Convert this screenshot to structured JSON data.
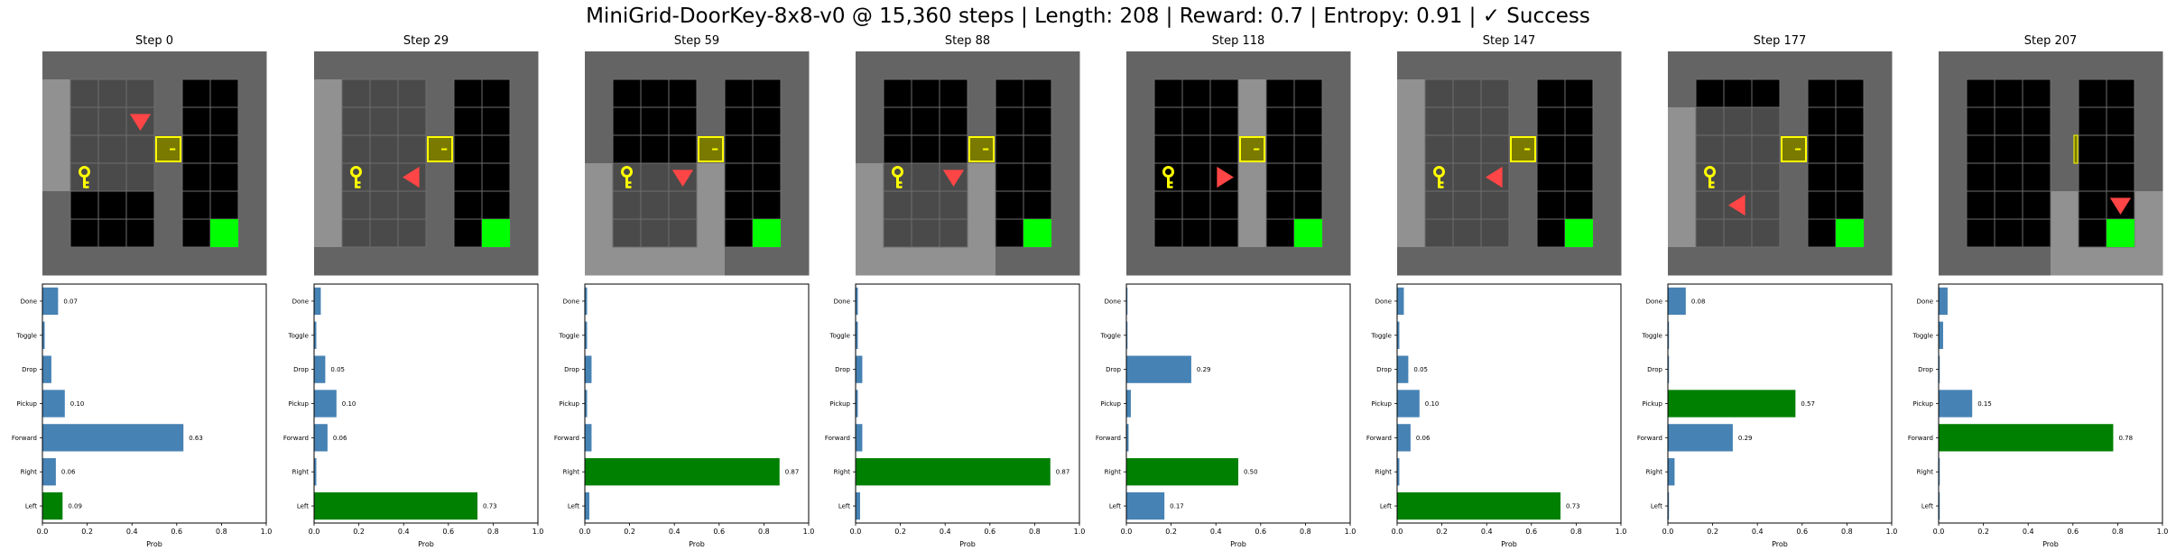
{
  "suptitle": "MiniGrid-DoorKey-8x8-v0 @ 15,360 steps | Length: 208 | Reward: 0.7 | Entropy: 0.91 | ✓ Success",
  "colors": {
    "wall": "#646464",
    "wall_dark": "#5a5a5a",
    "visible_floor": "#919191",
    "hidden_floor": "#4a4a4a",
    "room_floor": "#000000",
    "grid_line": "#6e6e6e",
    "door": "#7a7a00",
    "door_border": "#ffff00",
    "key": "#ffff00",
    "goal": "#00ff00",
    "agent": "#ff4545",
    "bar_default": "#4682b4",
    "bar_selected": "#008000"
  },
  "chart_data": [
    {
      "type": "bar",
      "orientation": "horizontal",
      "title": "Step 0",
      "categories": [
        "Left",
        "Right",
        "Forward",
        "Pickup",
        "Drop",
        "Toggle",
        "Done"
      ],
      "values": [
        0.09,
        0.06,
        0.63,
        0.1,
        0.04,
        0.01,
        0.07
      ],
      "value_labels": [
        "0.09",
        "0.06",
        "0.63",
        "0.10",
        "",
        "",
        "0.07"
      ],
      "selected": "Left",
      "xlabel": "Prob",
      "xlim": [
        0,
        1
      ],
      "xticks": [
        "0.0",
        "0.2",
        "0.4",
        "0.6",
        "0.8",
        "1.0"
      ],
      "frame": {
        "view_rows": [
          1,
          4
        ],
        "view_cols": [
          0,
          2
        ],
        "hidden": [
          [
            1,
            1
          ],
          [
            1,
            2
          ],
          [
            1,
            3
          ],
          [
            2,
            1
          ],
          [
            2,
            2
          ],
          [
            2,
            3
          ],
          [
            3,
            1
          ],
          [
            3,
            2
          ],
          [
            3,
            3
          ],
          [
            4,
            1
          ],
          [
            4,
            2
          ],
          [
            4,
            3
          ]
        ],
        "door_row": 3,
        "door_open": false,
        "key": [
          4,
          1
        ],
        "agent": [
          2,
          3
        ],
        "agent_dir": "down"
      }
    },
    {
      "type": "bar",
      "orientation": "horizontal",
      "title": "Step 29",
      "categories": [
        "Left",
        "Right",
        "Forward",
        "Pickup",
        "Drop",
        "Toggle",
        "Done"
      ],
      "values": [
        0.73,
        0.01,
        0.06,
        0.1,
        0.05,
        0.01,
        0.03
      ],
      "value_labels": [
        "0.73",
        "",
        "0.06",
        "0.10",
        "0.05",
        "",
        ""
      ],
      "selected": "Left",
      "xlabel": "Prob",
      "xlim": [
        0,
        1
      ],
      "xticks": [
        "0.0",
        "0.2",
        "0.4",
        "0.6",
        "0.8",
        "1.0"
      ],
      "frame": {
        "view_rows": [
          1,
          6
        ],
        "view_cols": [
          0,
          3
        ],
        "hidden": [
          [
            1,
            1
          ],
          [
            1,
            2
          ],
          [
            1,
            3
          ],
          [
            2,
            1
          ],
          [
            2,
            2
          ],
          [
            2,
            3
          ],
          [
            3,
            1
          ],
          [
            3,
            2
          ],
          [
            3,
            3
          ],
          [
            4,
            1
          ],
          [
            4,
            2
          ],
          [
            4,
            3
          ],
          [
            5,
            1
          ],
          [
            5,
            2
          ],
          [
            5,
            3
          ],
          [
            6,
            1
          ],
          [
            6,
            2
          ],
          [
            6,
            3
          ]
        ],
        "door_row": 3,
        "door_open": false,
        "key": [
          4,
          1
        ],
        "agent": [
          4,
          3
        ],
        "agent_dir": "left"
      }
    },
    {
      "type": "bar",
      "orientation": "horizontal",
      "title": "Step 59",
      "categories": [
        "Left",
        "Right",
        "Forward",
        "Pickup",
        "Drop",
        "Toggle",
        "Done"
      ],
      "values": [
        0.02,
        0.87,
        0.03,
        0.01,
        0.03,
        0.01,
        0.01
      ],
      "value_labels": [
        "",
        "0.87",
        "",
        "",
        "",
        "",
        ""
      ],
      "selected": "Right",
      "xlabel": "Prob",
      "xlim": [
        0,
        1
      ],
      "xticks": [
        "0.0",
        "0.2",
        "0.4",
        "0.6",
        "0.8",
        "1.0"
      ],
      "frame": {
        "view_rows": [
          4,
          7
        ],
        "view_cols": [
          0,
          4
        ],
        "hidden": [
          [
            4,
            1
          ],
          [
            4,
            2
          ],
          [
            4,
            3
          ],
          [
            5,
            1
          ],
          [
            5,
            2
          ],
          [
            5,
            3
          ],
          [
            6,
            1
          ],
          [
            6,
            2
          ],
          [
            6,
            3
          ]
        ],
        "door_row": 3,
        "door_open": false,
        "key": [
          4,
          1
        ],
        "agent": [
          4,
          3
        ],
        "agent_dir": "down"
      }
    },
    {
      "type": "bar",
      "orientation": "horizontal",
      "title": "Step 88",
      "categories": [
        "Left",
        "Right",
        "Forward",
        "Pickup",
        "Drop",
        "Toggle",
        "Done"
      ],
      "values": [
        0.02,
        0.87,
        0.03,
        0.01,
        0.03,
        0.01,
        0.01
      ],
      "value_labels": [
        "",
        "0.87",
        "",
        "",
        "",
        "",
        ""
      ],
      "selected": "Right",
      "xlabel": "Prob",
      "xlim": [
        0,
        1
      ],
      "xticks": [
        "0.0",
        "0.2",
        "0.4",
        "0.6",
        "0.8",
        "1.0"
      ],
      "frame": {
        "view_rows": [
          4,
          7
        ],
        "view_cols": [
          0,
          4
        ],
        "hidden": [
          [
            4,
            1
          ],
          [
            4,
            2
          ],
          [
            4,
            3
          ],
          [
            5,
            1
          ],
          [
            5,
            2
          ],
          [
            5,
            3
          ],
          [
            6,
            1
          ],
          [
            6,
            2
          ],
          [
            6,
            3
          ]
        ],
        "door_row": 3,
        "door_open": false,
        "key": [
          4,
          1
        ],
        "agent": [
          4,
          3
        ],
        "agent_dir": "down"
      }
    },
    {
      "type": "bar",
      "orientation": "horizontal",
      "title": "Step 118",
      "categories": [
        "Left",
        "Right",
        "Forward",
        "Pickup",
        "Drop",
        "Toggle",
        "Done"
      ],
      "values": [
        0.17,
        0.5,
        0.01,
        0.02,
        0.29,
        0.005,
        0.005
      ],
      "value_labels": [
        "0.17",
        "0.50",
        "",
        "",
        "0.29",
        "",
        ""
      ],
      "selected": "Right",
      "xlabel": "Prob",
      "xlim": [
        0,
        1
      ],
      "xticks": [
        "0.0",
        "0.2",
        "0.4",
        "0.6",
        "0.8",
        "1.0"
      ],
      "frame": {
        "view_rows": [
          1,
          6
        ],
        "view_cols": [
          4,
          4
        ],
        "hidden": [],
        "door_row": 3,
        "door_open": false,
        "key": [
          4,
          1
        ],
        "agent": [
          4,
          3
        ],
        "agent_dir": "right"
      }
    },
    {
      "type": "bar",
      "orientation": "horizontal",
      "title": "Step 147",
      "categories": [
        "Left",
        "Right",
        "Forward",
        "Pickup",
        "Drop",
        "Toggle",
        "Done"
      ],
      "values": [
        0.73,
        0.01,
        0.06,
        0.1,
        0.05,
        0.01,
        0.03
      ],
      "value_labels": [
        "0.73",
        "",
        "0.06",
        "0.10",
        "0.05",
        "",
        ""
      ],
      "selected": "Left",
      "xlabel": "Prob",
      "xlim": [
        0,
        1
      ],
      "xticks": [
        "0.0",
        "0.2",
        "0.4",
        "0.6",
        "0.8",
        "1.0"
      ],
      "frame": {
        "view_rows": [
          1,
          6
        ],
        "view_cols": [
          0,
          3
        ],
        "hidden": [
          [
            1,
            1
          ],
          [
            1,
            2
          ],
          [
            1,
            3
          ],
          [
            2,
            1
          ],
          [
            2,
            2
          ],
          [
            2,
            3
          ],
          [
            3,
            1
          ],
          [
            3,
            2
          ],
          [
            3,
            3
          ],
          [
            4,
            1
          ],
          [
            4,
            2
          ],
          [
            4,
            3
          ],
          [
            5,
            1
          ],
          [
            5,
            2
          ],
          [
            5,
            3
          ],
          [
            6,
            1
          ],
          [
            6,
            2
          ],
          [
            6,
            3
          ]
        ],
        "door_row": 3,
        "door_open": false,
        "key": [
          4,
          1
        ],
        "agent": [
          4,
          3
        ],
        "agent_dir": "left"
      }
    },
    {
      "type": "bar",
      "orientation": "horizontal",
      "title": "Step 177",
      "categories": [
        "Left",
        "Right",
        "Forward",
        "Pickup",
        "Drop",
        "Toggle",
        "Done"
      ],
      "values": [
        0.005,
        0.03,
        0.29,
        0.57,
        0.005,
        0.005,
        0.08
      ],
      "value_labels": [
        "",
        "",
        "0.29",
        "0.57",
        "",
        "",
        "0.08"
      ],
      "selected": "Pickup",
      "xlabel": "Prob",
      "xlim": [
        0,
        1
      ],
      "xticks": [
        "0.0",
        "0.2",
        "0.4",
        "0.6",
        "0.8",
        "1.0"
      ],
      "frame": {
        "view_rows": [
          2,
          6
        ],
        "view_cols": [
          0,
          2
        ],
        "hidden": [
          [
            2,
            1
          ],
          [
            2,
            2
          ],
          [
            2,
            3
          ],
          [
            3,
            1
          ],
          [
            3,
            2
          ],
          [
            3,
            3
          ],
          [
            4,
            1
          ],
          [
            4,
            2
          ],
          [
            4,
            3
          ],
          [
            5,
            1
          ],
          [
            5,
            2
          ],
          [
            5,
            3
          ],
          [
            6,
            1
          ],
          [
            6,
            2
          ],
          [
            6,
            3
          ]
        ],
        "door_row": 3,
        "door_open": false,
        "key": [
          4,
          1
        ],
        "agent": [
          5,
          2
        ],
        "agent_dir": "left"
      }
    },
    {
      "type": "bar",
      "orientation": "horizontal",
      "title": "Step 207",
      "categories": [
        "Left",
        "Right",
        "Forward",
        "Pickup",
        "Drop",
        "Toggle",
        "Done"
      ],
      "values": [
        0.005,
        0.005,
        0.78,
        0.15,
        0.005,
        0.02,
        0.04
      ],
      "value_labels": [
        "",
        "",
        "0.78",
        "0.15",
        "",
        "",
        ""
      ],
      "selected": "Forward",
      "xlabel": "Prob",
      "xlim": [
        0,
        1
      ],
      "xticks": [
        "0.0",
        "0.2",
        "0.4",
        "0.6",
        "0.8",
        "1.0"
      ],
      "frame": {
        "view_rows": [
          5,
          7
        ],
        "view_cols": [
          4,
          7
        ],
        "hidden": [],
        "door_row": 3,
        "door_open": true,
        "key": null,
        "agent": [
          5,
          6
        ],
        "agent_dir": "down"
      }
    }
  ]
}
